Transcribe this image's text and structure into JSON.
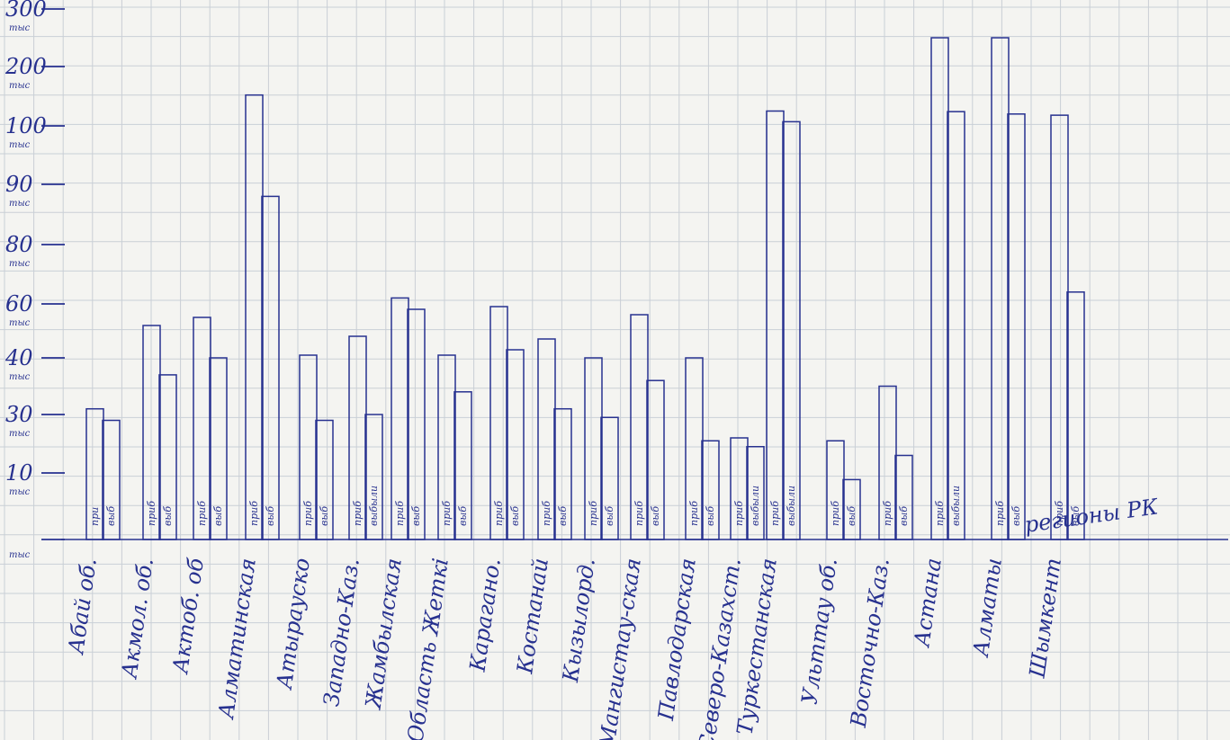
{
  "chart_data": {
    "type": "bar",
    "title": "",
    "xlabel": "регионы РК",
    "ylabel": "",
    "grid": true,
    "y_axis_ticks": [
      {
        "num": "300",
        "unit": "тыс"
      },
      {
        "num": "200",
        "unit": "тыс"
      },
      {
        "num": "100",
        "unit": "тыс"
      },
      {
        "num": "90",
        "unit": "тыс"
      },
      {
        "num": "80",
        "unit": "тыс"
      },
      {
        "num": "60",
        "unit": "тыс"
      },
      {
        "num": "40",
        "unit": "тыс"
      },
      {
        "num": "30",
        "unit": "тыс"
      },
      {
        "num": "10",
        "unit": "тыс"
      },
      {
        "num": "",
        "unit": "тыс"
      }
    ],
    "y_tick_values": [
      300,
      200,
      100,
      90,
      80,
      60,
      40,
      30,
      10,
      0
    ],
    "categories": [
      "Абай об.",
      "Акмол. об.",
      "Актоб. об",
      "Алматинская",
      "Атырауско",
      "Западно-Каз.",
      "Жамбылская",
      "Область Жеткі",
      "Карагано.",
      "Костанай",
      "Кызылорд.",
      "Мангистау-ская",
      "Павлодарская",
      "Северо-Казахст.",
      "Туркестанская",
      "Ульттау об.",
      "Восточно-Каз.",
      "Астана",
      "Алматы",
      "Шымкент"
    ],
    "series": [
      {
        "name": "приб",
        "values": [
          31,
          52,
          55,
          152,
          41,
          48,
          62,
          41,
          59,
          47,
          40,
          56,
          40,
          22,
          125,
          21,
          35,
          250,
          250,
          118
        ],
        "labels": [
          "при",
          "приб",
          "приб",
          "приб",
          "приб",
          "приб",
          "приб",
          "приб",
          "приб",
          "приб",
          "приб",
          "приб",
          "приб",
          "приб",
          "приб",
          "приб",
          "приб",
          "приб",
          "приб",
          "приб"
        ]
      },
      {
        "name": "выб",
        "values": [
          28,
          37,
          40,
          88,
          28,
          30,
          58,
          34,
          43,
          31,
          29,
          36,
          21,
          19,
          107,
          9,
          16,
          124,
          120,
          64
        ],
        "labels": [
          "выб",
          "выб",
          "выб",
          "выб",
          "выб",
          "выбыли",
          "выб",
          "выб",
          "выб",
          "выб",
          "выб",
          "выб",
          "выб",
          "выбыли",
          "выбыли",
          "выб",
          "выб",
          "выбыли",
          "выб",
          "выб"
        ]
      }
    ],
    "colors": {
      "ink": "#27318f",
      "grid": "#c9cfd6",
      "paper": "#f4f4f1"
    }
  }
}
